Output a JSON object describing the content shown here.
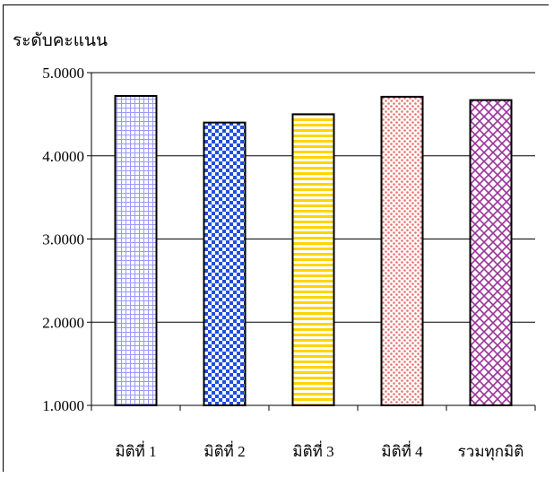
{
  "chart_data": {
    "type": "bar",
    "title": "",
    "ylabel": "ระดับคะแนน",
    "xlabel": "",
    "categories": [
      "มิติที่ 1",
      "มิติที่ 2",
      "มิติที่ 3",
      "มิติที่ 4",
      "รวมทุกมิติ"
    ],
    "values": [
      4.72,
      4.4,
      4.5,
      4.71,
      4.67
    ],
    "ylim": [
      1.0,
      5.0
    ],
    "yticks": [
      "1.0000",
      "2.0000",
      "3.0000",
      "4.0000",
      "5.0000"
    ],
    "grid": true,
    "legend": "none",
    "bar_patterns": [
      "grid",
      "checker",
      "horizontal-stripes",
      "dots",
      "diagonal-cross"
    ],
    "bar_colors": [
      "#9999ff",
      "#1f4fe0",
      "#ffd400",
      "#f07070",
      "#993399"
    ]
  }
}
